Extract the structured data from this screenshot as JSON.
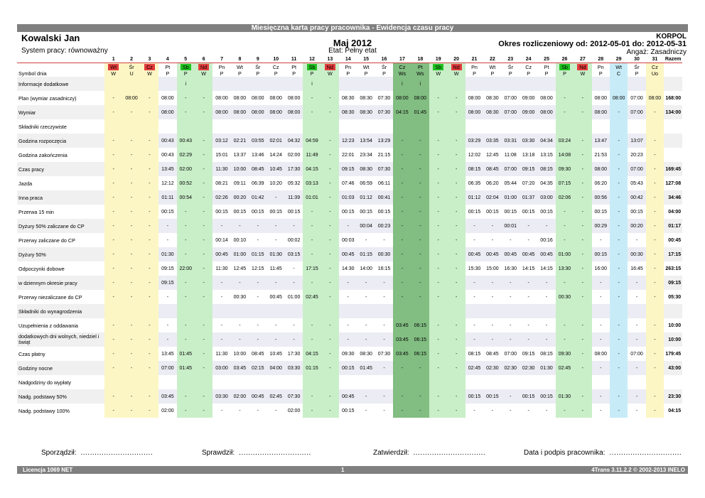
{
  "title": "Miesięczna karta pracy pracownika - Ewidencja czasu pracy",
  "employee": "Kowalski Jan",
  "system": "System pracy: równoważny",
  "month": "Maj 2012",
  "etat": "Etat: Pełny etat",
  "company": "KORPOL",
  "period": "Okres rozliczeniowy od: 2012-05-01 do: 2012-05-31",
  "angaz": "Angaż: Zasadniczy",
  "total_header": "Razem",
  "days": [
    "1",
    "2",
    "3",
    "4",
    "5",
    "6",
    "7",
    "8",
    "9",
    "10",
    "11",
    "12",
    "13",
    "14",
    "15",
    "16",
    "17",
    "18",
    "19",
    "20",
    "21",
    "22",
    "23",
    "24",
    "25",
    "26",
    "27",
    "28",
    "29",
    "30",
    "31"
  ],
  "weekdays": [
    "Wt",
    "Śr",
    "Cz",
    "Pt",
    "Sb",
    "Nd",
    "Pn",
    "Wt",
    "Śr",
    "Cz",
    "Pt",
    "Sb",
    "Nd",
    "Pn",
    "Wt",
    "Śr",
    "Cz",
    "Pt",
    "Sb",
    "Nd",
    "Pn",
    "Wt",
    "Śr",
    "Cz",
    "Pt",
    "Sb",
    "Nd",
    "Pn",
    "Wt",
    "Śr",
    "Cz"
  ],
  "day_types": [
    "hol",
    "hol",
    "hol",
    "wk",
    "sat",
    "sun",
    "wk",
    "wk",
    "wk",
    "wk",
    "wk",
    "sat",
    "sun",
    "wk",
    "wk",
    "wk",
    "ws",
    "ws",
    "sat",
    "sun",
    "wk",
    "wk",
    "wk",
    "wk",
    "wk",
    "sat",
    "sun",
    "wk",
    "sick",
    "wk",
    "vac"
  ],
  "weekday_marks": [
    "red",
    "",
    "red",
    "",
    "green",
    "red",
    "",
    "",
    "",
    "",
    "",
    "green",
    "red",
    "",
    "",
    "",
    "",
    "",
    "green",
    "red",
    "",
    "",
    "",
    "",
    "",
    "green",
    "red",
    "",
    "",
    "",
    ""
  ],
  "rows": [
    {
      "label": "Symbol dnia",
      "indent": false,
      "cls": "sym",
      "cells": [
        "W",
        "U",
        "W",
        "P",
        "P",
        "W",
        "P",
        "P",
        "P",
        "P",
        "P",
        "P",
        "W",
        "P",
        "P",
        "P",
        "Ws",
        "Ws",
        "W",
        "W",
        "P",
        "P",
        "P",
        "P",
        "P",
        "P",
        "W",
        "P",
        "C",
        "P",
        "Uo"
      ],
      "total": ""
    },
    {
      "label": "Informacje dodatkowe",
      "indent": false,
      "cells": [
        "",
        "",
        "",
        "",
        "i",
        "",
        "",
        "",
        "",
        "",
        "",
        "i",
        "",
        "",
        "",
        "",
        "i",
        "i",
        "",
        "",
        "",
        "",
        "",
        "",
        "",
        "",
        "",
        "",
        "",
        "",
        ""
      ],
      "total": ""
    },
    {
      "label": "Plan (wymiar zasadniczy)",
      "indent": false,
      "cells": [
        "-",
        "08:00",
        "-",
        "08:00",
        "-",
        "-",
        "08:00",
        "08:00",
        "08:00",
        "08:00",
        "08:00",
        "-",
        "-",
        "08:30",
        "08:30",
        "07:30",
        "08:00",
        "08:00",
        "-",
        "-",
        "08:00",
        "08:30",
        "07:00",
        "09:00",
        "08:00",
        "-",
        "-",
        "08:00",
        "08:00",
        "07:00",
        "08:00"
      ],
      "total": "168:00"
    },
    {
      "label": "Wymiar",
      "indent": false,
      "cells": [
        "-",
        "-",
        "-",
        "08:00",
        "-",
        "-",
        "08:00",
        "08:00",
        "08:00",
        "08:00",
        "08:00",
        "-",
        "-",
        "08:30",
        "08:30",
        "07:30",
        "04:15",
        "01:45",
        "-",
        "-",
        "08:00",
        "08:30",
        "07:00",
        "09:00",
        "08:00",
        "-",
        "-",
        "08:00",
        "-",
        "07:00",
        "-"
      ],
      "total": "134:00"
    },
    {
      "label": "Składniki rzeczywiste",
      "indent": false,
      "cells": [
        "",
        "",
        "",
        "",
        "",
        "",
        "",
        "",
        "",
        "",
        "",
        "",
        "",
        "",
        "",
        "",
        "",
        "",
        "",
        "",
        "",
        "",
        "",
        "",
        "",
        "",
        "",
        "",
        "",
        "",
        ""
      ],
      "total": ""
    },
    {
      "label": "Godzina rozpoczęcia",
      "indent": false,
      "cells": [
        "-",
        "-",
        "-",
        "00:43",
        "00:43",
        "-",
        "03:12",
        "02:21",
        "03:55",
        "02:01",
        "04:32",
        "04:59",
        "-",
        "12:23",
        "13:54",
        "13:29",
        "-",
        "-",
        "-",
        "-",
        "03:29",
        "03:35",
        "03:31",
        "03:30",
        "04:34",
        "03:24",
        "-",
        "13:47",
        "-",
        "13:07",
        "-"
      ],
      "total": ""
    },
    {
      "label": "Godzina zakończenia",
      "indent": false,
      "cells": [
        "-",
        "-",
        "-",
        "00:43",
        "02:29",
        "-",
        "15:01",
        "13:37",
        "13:46",
        "14:24",
        "02:00",
        "11:49",
        "-",
        "22:01",
        "23:34",
        "21:15",
        "-",
        "-",
        "-",
        "-",
        "12:02",
        "12:45",
        "11:08",
        "13:18",
        "13:15",
        "14:08",
        "-",
        "21:53",
        "-",
        "20:23",
        "-"
      ],
      "total": ""
    },
    {
      "label": "Czas pracy",
      "indent": false,
      "cells": [
        "-",
        "-",
        "-",
        "13:45",
        "02:00",
        "-",
        "11:30",
        "10:00",
        "08:45",
        "10:45",
        "17:30",
        "04:15",
        "-",
        "09:15",
        "08:30",
        "07:30",
        "-",
        "-",
        "-",
        "-",
        "08:15",
        "08:45",
        "07:00",
        "09:15",
        "08:15",
        "09:30",
        "-",
        "08:00",
        "-",
        "07:00",
        "-"
      ],
      "total": "169:45"
    },
    {
      "label": "Jazda",
      "indent": true,
      "cells": [
        "-",
        "-",
        "-",
        "12:12",
        "00:52",
        "-",
        "08:21",
        "09:11",
        "06:39",
        "10:20",
        "05:32",
        "03:13",
        "-",
        "07:46",
        "06:59",
        "06:11",
        "-",
        "-",
        "-",
        "-",
        "06:35",
        "06:20",
        "05:44",
        "07:20",
        "04:35",
        "07:15",
        "-",
        "06:20",
        "-",
        "05:43",
        "-"
      ],
      "total": "127:08"
    },
    {
      "label": "Inna praca",
      "indent": true,
      "cells": [
        "-",
        "-",
        "-",
        "01:11",
        "00:54",
        "-",
        "02:26",
        "00:20",
        "01:42",
        "-",
        "11:39",
        "01:01",
        "-",
        "01:03",
        "01:12",
        "00:41",
        "-",
        "-",
        "-",
        "-",
        "01:12",
        "02:04",
        "01:00",
        "01:37",
        "03:00",
        "02:06",
        "-",
        "00:56",
        "-",
        "00:42",
        "-"
      ],
      "total": "34:46"
    },
    {
      "label": "Przerwa 15 min",
      "indent": true,
      "cells": [
        "-",
        "-",
        "-",
        "00:15",
        "-",
        "-",
        "00:15",
        "00:15",
        "00:15",
        "00:15",
        "00:15",
        "-",
        "-",
        "00:15",
        "00:15",
        "00:15",
        "-",
        "-",
        "-",
        "-",
        "00:15",
        "00:15",
        "00:15",
        "00:15",
        "00:15",
        "-",
        "-",
        "00:15",
        "-",
        "00:15",
        "-"
      ],
      "total": "04:00"
    },
    {
      "label": "Dyżury 50% zaliczane do CP",
      "indent": true,
      "cells": [
        "-",
        "-",
        "-",
        "-",
        "-",
        "-",
        "-",
        "-",
        "-",
        "-",
        "-",
        "-",
        "-",
        "-",
        "00:04",
        "00:23",
        "-",
        "-",
        "-",
        "-",
        "-",
        "-",
        "00:01",
        "-",
        "-",
        "-",
        "-",
        "00:29",
        "-",
        "00:20",
        "-"
      ],
      "total": "01:17"
    },
    {
      "label": "Przerwy zaliczane do CP",
      "indent": true,
      "cells": [
        "-",
        "-",
        "-",
        "-",
        "-",
        "-",
        "00:14",
        "00:10",
        "-",
        "-",
        "00:02",
        "-",
        "-",
        "00:03",
        "-",
        "-",
        "-",
        "-",
        "-",
        "-",
        "-",
        "-",
        "-",
        "-",
        "00:16",
        "-",
        "-",
        "-",
        "-",
        "-",
        "-"
      ],
      "total": "00:45"
    },
    {
      "label": "Dyżury 50%",
      "indent": false,
      "cells": [
        "-",
        "-",
        "-",
        "01:30",
        "-",
        "-",
        "00:45",
        "01:00",
        "01:15",
        "01:30",
        "03:15",
        "-",
        "-",
        "00:45",
        "01:15",
        "00:30",
        "-",
        "-",
        "-",
        "-",
        "00:45",
        "00:45",
        "00:45",
        "00:45",
        "00:45",
        "01:00",
        "-",
        "00:15",
        "-",
        "00:30",
        "-"
      ],
      "total": "17:15"
    },
    {
      "label": "Odpoczynki dobowe",
      "indent": false,
      "cells": [
        "-",
        "-",
        "-",
        "09:15",
        "22:00",
        "-",
        "11:30",
        "12:45",
        "12:15",
        "11:45",
        "-",
        "17:15",
        "-",
        "14:30",
        "14:00",
        "16:15",
        "-",
        "-",
        "-",
        "-",
        "15:30",
        "15:00",
        "16:30",
        "14:15",
        "14:15",
        "13:30",
        "-",
        "16:00",
        "-",
        "16:45",
        "-"
      ],
      "total": "263:15"
    },
    {
      "label": "w dziennym okresie pracy",
      "indent": true,
      "cells": [
        "-",
        "-",
        "-",
        "09:15",
        "-",
        "-",
        "-",
        "-",
        "-",
        "-",
        "-",
        "-",
        "-",
        "-",
        "-",
        "-",
        "-",
        "-",
        "-",
        "-",
        "-",
        "-",
        "-",
        "-",
        "-",
        "-",
        "-",
        "-",
        "-",
        "-",
        "-"
      ],
      "total": "09:15"
    },
    {
      "label": "Przerwy niezaliczane do CP",
      "indent": false,
      "cells": [
        "-",
        "-",
        "-",
        "-",
        "-",
        "-",
        "-",
        "00:30",
        "-",
        "00:45",
        "01:00",
        "02:45",
        "-",
        "-",
        "-",
        "-",
        "-",
        "-",
        "-",
        "-",
        "-",
        "-",
        "-",
        "-",
        "-",
        "00:30",
        "-",
        "-",
        "-",
        "-",
        "-"
      ],
      "total": "05:30"
    },
    {
      "label": "Składniki do wynagrodzenia",
      "indent": false,
      "cells": [
        "",
        "",
        "",
        "",
        "",
        "",
        "",
        "",
        "",
        "",
        "",
        "",
        "",
        "",
        "",
        "",
        "",
        "",
        "",
        "",
        "",
        "",
        "",
        "",
        "",
        "",
        "",
        "",
        "",
        "",
        ""
      ],
      "total": ""
    },
    {
      "label": "Uzupełnienia z oddawania",
      "indent": false,
      "cells": [
        "-",
        "-",
        "-",
        "-",
        "-",
        "-",
        "-",
        "-",
        "-",
        "-",
        "-",
        "-",
        "-",
        "-",
        "-",
        "-",
        "03:45",
        "06:15",
        "-",
        "-",
        "-",
        "-",
        "-",
        "-",
        "-",
        "-",
        "-",
        "-",
        "-",
        "-",
        "-"
      ],
      "total": "10:00"
    },
    {
      "label": "dodatkowych dni wolnych, niedziel i świąt",
      "indent": true,
      "cells": [
        "-",
        "-",
        "-",
        "-",
        "-",
        "-",
        "-",
        "-",
        "-",
        "-",
        "-",
        "-",
        "-",
        "-",
        "-",
        "-",
        "03:45",
        "06:15",
        "-",
        "-",
        "-",
        "-",
        "-",
        "-",
        "-",
        "-",
        "-",
        "-",
        "-",
        "-",
        "-"
      ],
      "total": "10:00"
    },
    {
      "label": "Czas płatny",
      "indent": false,
      "cells": [
        "-",
        "-",
        "-",
        "13:45",
        "01:45",
        "-",
        "11:30",
        "10:00",
        "08:45",
        "10:45",
        "17:30",
        "04:15",
        "-",
        "09:30",
        "08:30",
        "07:30",
        "03:45",
        "06:15",
        "-",
        "-",
        "08:15",
        "08:45",
        "07:00",
        "09:15",
        "08:15",
        "09:30",
        "-",
        "08:00",
        "-",
        "07:00",
        "-"
      ],
      "total": "179:45"
    },
    {
      "label": "Godziny nocne",
      "indent": false,
      "cells": [
        "-",
        "-",
        "-",
        "07:00",
        "01:45",
        "-",
        "03:00",
        "03:45",
        "02:15",
        "04:00",
        "03:30",
        "01:15",
        "-",
        "00:15",
        "01:45",
        "-",
        "-",
        "-",
        "-",
        "-",
        "02:45",
        "02:30",
        "02:30",
        "02:30",
        "01:30",
        "02:45",
        "-",
        "-",
        "-",
        "-",
        "-"
      ],
      "total": "43:00"
    },
    {
      "label": "Nadgodziny do wypłaty",
      "indent": false,
      "cells": [
        "",
        "",
        "",
        "",
        "",
        "",
        "",
        "",
        "",
        "",
        "",
        "",
        "",
        "",
        "",
        "",
        "",
        "",
        "",
        "",
        "",
        "",
        "",
        "",
        "",
        "",
        "",
        "",
        "",
        "",
        ""
      ],
      "total": ""
    },
    {
      "label": "Nadg. podstawy 50%",
      "indent": true,
      "cells": [
        "-",
        "-",
        "-",
        "03:45",
        "-",
        "-",
        "03:30",
        "02:00",
        "00:45",
        "02:45",
        "07:30",
        "-",
        "-",
        "00:45",
        "-",
        "-",
        "-",
        "-",
        "-",
        "-",
        "00:15",
        "00:15",
        "-",
        "00:15",
        "00:15",
        "01:30",
        "-",
        "-",
        "-",
        "-",
        "-"
      ],
      "total": "23:30"
    },
    {
      "label": "Nadg. podstawy 100%",
      "indent": true,
      "cells": [
        "-",
        "-",
        "-",
        "02:00",
        "-",
        "-",
        "-",
        "-",
        "-",
        "-",
        "02:00",
        "-",
        "-",
        "00:15",
        "-",
        "-",
        "-",
        "-",
        "-",
        "-",
        "-",
        "-",
        "-",
        "-",
        "-",
        "-",
        "-",
        "-",
        "-",
        "-",
        "-"
      ],
      "total": "04:15"
    }
  ],
  "signatures": {
    "sporzadzil": "Sporządził:",
    "sprawdzil": "Sprawdził:",
    "zatwierdzil": "Zatwierdził:",
    "data_podpis": "Data i podpis pracownika:",
    "dots": "..............................."
  },
  "footer": {
    "license": "Licencja 1069 NET",
    "page": "1",
    "version": "4Trans 3.11.2.2 © 2002-2013 INELO"
  }
}
